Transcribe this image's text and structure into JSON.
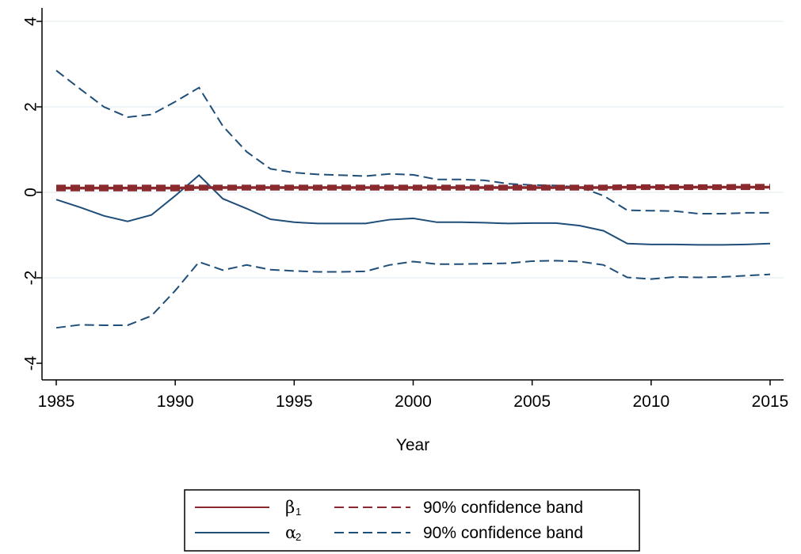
{
  "chart_data": {
    "type": "line",
    "xlabel": "Year",
    "ylabel": "",
    "xlim": [
      1985,
      2015
    ],
    "ylim": [
      -4,
      4
    ],
    "x_ticks": [
      "1985",
      "1990",
      "1995",
      "2000",
      "2005",
      "2010",
      "2015"
    ],
    "y_ticks": [
      "-4",
      "-2",
      "0",
      "2",
      "4"
    ],
    "grid": "horizontal",
    "legend_position": "bottom",
    "x": [
      1985,
      1986,
      1987,
      1988,
      1989,
      1990,
      1991,
      1992,
      1993,
      1994,
      1995,
      1996,
      1997,
      1998,
      1999,
      2000,
      2001,
      2002,
      2003,
      2004,
      2005,
      2006,
      2007,
      2008,
      2009,
      2010,
      2011,
      2012,
      2013,
      2014,
      2015
    ],
    "series": [
      {
        "key": "beta",
        "label_symbol": "β",
        "label_sub": "1",
        "style": "solid",
        "color": "#8b2a2e",
        "values": [
          0.1,
          0.1,
          0.1,
          0.1,
          0.1,
          0.1,
          0.11,
          0.11,
          0.11,
          0.11,
          0.11,
          0.11,
          0.11,
          0.11,
          0.11,
          0.11,
          0.11,
          0.11,
          0.11,
          0.11,
          0.11,
          0.11,
          0.11,
          0.11,
          0.12,
          0.12,
          0.12,
          0.12,
          0.12,
          0.12,
          0.12
        ]
      },
      {
        "key": "beta_band",
        "name": "90% confidence band",
        "style": "dashed",
        "color": "#8b2a2e",
        "upper": [
          0.15,
          0.15,
          0.15,
          0.15,
          0.15,
          0.15,
          0.15,
          0.15,
          0.15,
          0.15,
          0.15,
          0.15,
          0.15,
          0.15,
          0.15,
          0.15,
          0.15,
          0.15,
          0.15,
          0.15,
          0.15,
          0.15,
          0.15,
          0.15,
          0.16,
          0.16,
          0.16,
          0.16,
          0.16,
          0.17,
          0.17
        ],
        "lower": [
          0.05,
          0.05,
          0.05,
          0.05,
          0.05,
          0.05,
          0.07,
          0.07,
          0.07,
          0.07,
          0.07,
          0.07,
          0.07,
          0.07,
          0.07,
          0.07,
          0.07,
          0.07,
          0.07,
          0.07,
          0.07,
          0.07,
          0.07,
          0.07,
          0.08,
          0.08,
          0.08,
          0.08,
          0.08,
          0.08,
          0.08
        ]
      },
      {
        "key": "alpha",
        "label_symbol": "α",
        "label_sub": "2",
        "style": "solid",
        "color": "#1f4e79",
        "values": [
          -0.17,
          -0.35,
          -0.55,
          -0.68,
          -0.53,
          -0.08,
          0.4,
          -0.15,
          -0.38,
          -0.63,
          -0.7,
          -0.73,
          -0.73,
          -0.73,
          -0.64,
          -0.61,
          -0.7,
          -0.7,
          -0.71,
          -0.73,
          -0.72,
          -0.72,
          -0.78,
          -0.9,
          -1.2,
          -1.22,
          -1.22,
          -1.23,
          -1.23,
          -1.22,
          -1.2
        ]
      },
      {
        "key": "alpha_band",
        "name": "90% confidence band",
        "style": "dashed",
        "color": "#1f4e79",
        "upper": [
          2.85,
          2.42,
          2.0,
          1.76,
          1.82,
          2.12,
          2.45,
          1.55,
          0.95,
          0.55,
          0.46,
          0.42,
          0.4,
          0.38,
          0.43,
          0.41,
          0.3,
          0.3,
          0.28,
          0.2,
          0.17,
          0.16,
          0.12,
          -0.08,
          -0.42,
          -0.43,
          -0.44,
          -0.5,
          -0.5,
          -0.48,
          -0.48
        ],
        "lower": [
          -3.17,
          -3.1,
          -3.11,
          -3.11,
          -2.89,
          -2.3,
          -1.63,
          -1.82,
          -1.7,
          -1.81,
          -1.84,
          -1.86,
          -1.86,
          -1.85,
          -1.7,
          -1.62,
          -1.68,
          -1.68,
          -1.67,
          -1.66,
          -1.61,
          -1.6,
          -1.62,
          -1.7,
          -1.99,
          -2.03,
          -1.98,
          -1.99,
          -1.98,
          -1.95,
          -1.92
        ]
      }
    ],
    "legend": [
      {
        "series": "beta",
        "symbol": "β",
        "sub": "1",
        "name": ""
      },
      {
        "series": "beta_band",
        "name": "90% confidence band"
      },
      {
        "series": "alpha",
        "symbol": "α",
        "sub": "2",
        "name": ""
      },
      {
        "series": "alpha_band",
        "name": "90% confidence band"
      }
    ],
    "colors": {
      "beta": "#8b2a2e",
      "alpha": "#1f4e79",
      "grid": "#eaf0f3",
      "axis": "#000000"
    }
  }
}
